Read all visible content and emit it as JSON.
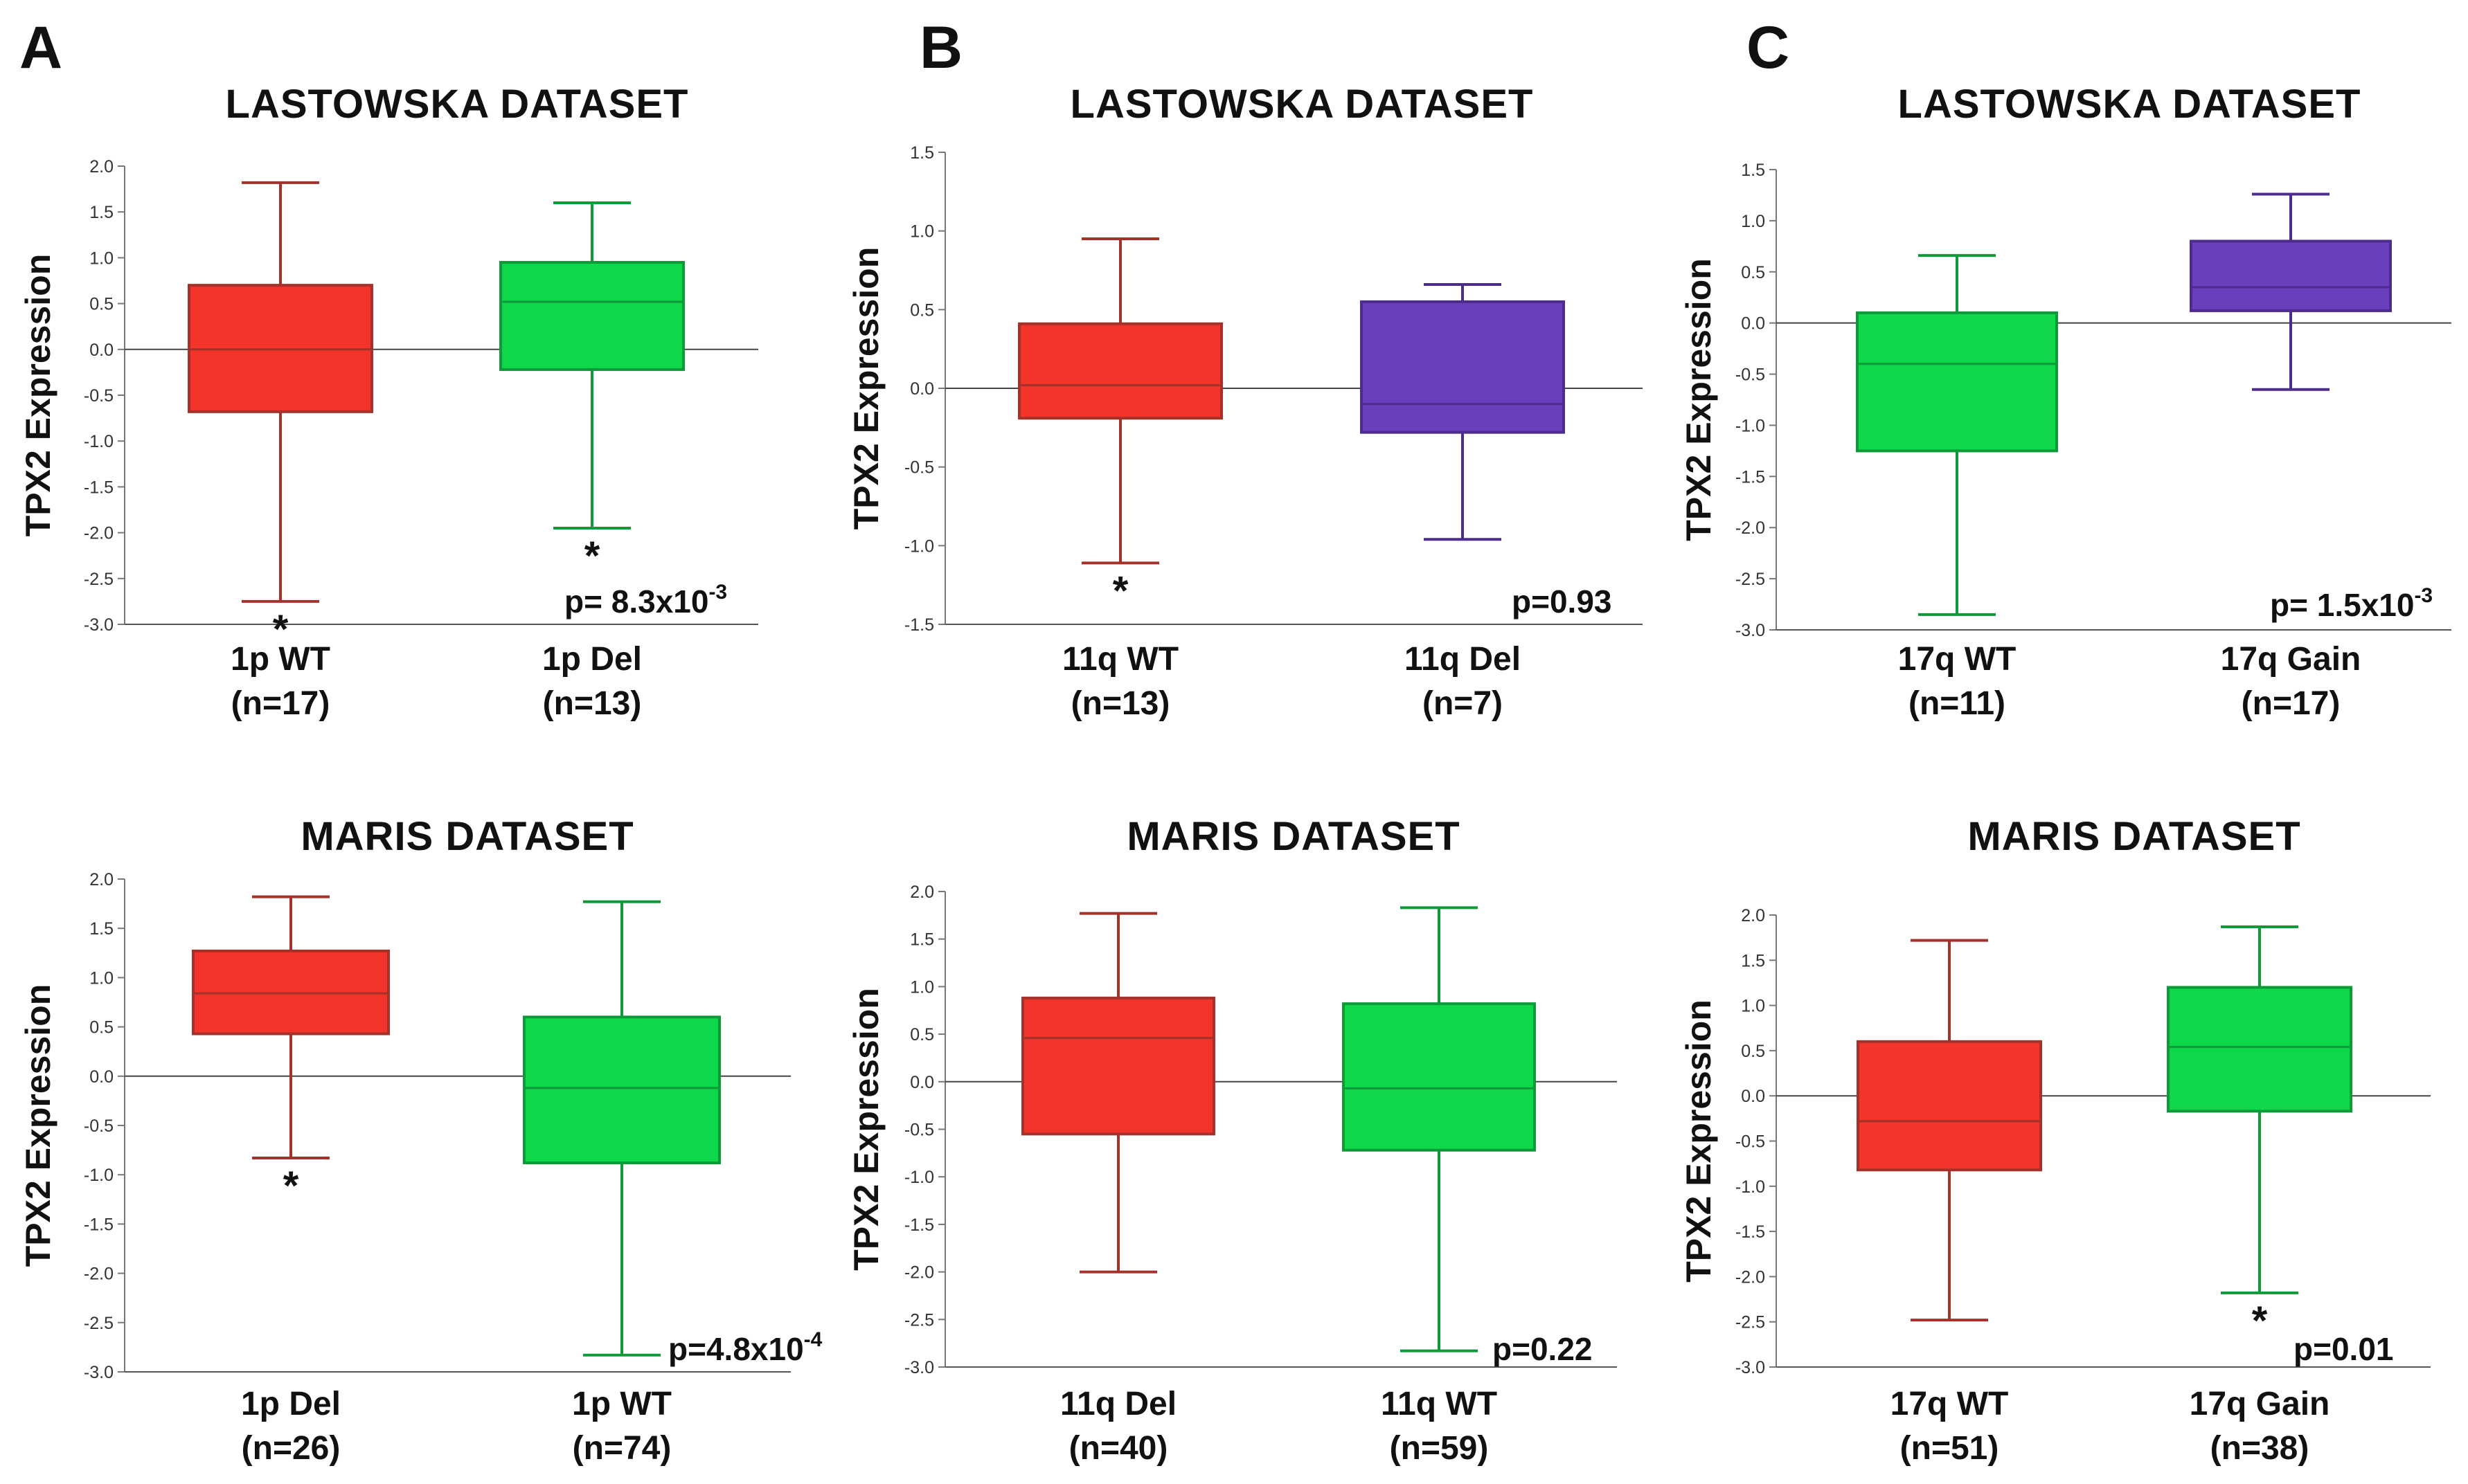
{
  "panel_letters": [
    "A",
    "B",
    "C"
  ],
  "colors": {
    "red": "#f2342a",
    "green": "#0ed84a",
    "purple": "#6a3fbd"
  },
  "chart_data": [
    {
      "id": "A1",
      "type": "box",
      "panel": "A",
      "title": "LASTOWSKA  DATASET",
      "ylabel": "TPX2  Expression",
      "ylim": [
        -3.0,
        2.0
      ],
      "yticks": [
        "2.0",
        "1.5",
        "1.0",
        "0.5",
        "0.0",
        "-0.5",
        "-1.0",
        "-1.5",
        "-2.0",
        "-2.5",
        "-3.0"
      ],
      "reference_line": 0.0,
      "p_base": "p= 8.3x10",
      "p_exp": "-3",
      "groups": [
        {
          "label": "1p WT",
          "n": "(n=17)",
          "color": "red",
          "min": -2.75,
          "q1": -0.68,
          "median": 0.0,
          "q3": 0.7,
          "max": 1.82,
          "star": "*"
        },
        {
          "label": "1p Del",
          "n": "(n=13)",
          "color": "green",
          "min": -1.95,
          "q1": -0.22,
          "median": 0.52,
          "q3": 0.95,
          "max": 1.6,
          "star": "*"
        }
      ]
    },
    {
      "id": "B1",
      "type": "box",
      "panel": "B",
      "title": "LASTOWSKA  DATASET",
      "ylabel": "TPX2  Expression",
      "ylim": [
        -1.5,
        1.5
      ],
      "yticks": [
        "1.5",
        "1.0",
        "0.5",
        "0.0",
        "-0.5",
        "-1.0",
        "-1.5"
      ],
      "reference_line": 0.0,
      "p_base": "p=0.93",
      "p_exp": "",
      "groups": [
        {
          "label": "11q WT",
          "n": "(n=13)",
          "color": "red",
          "min": -1.11,
          "q1": -0.19,
          "median": 0.02,
          "q3": 0.41,
          "max": 0.95,
          "star": "*"
        },
        {
          "label": "11q Del",
          "n": "(n=7)",
          "color": "purple",
          "min": -0.96,
          "q1": -0.28,
          "median": -0.1,
          "q3": 0.55,
          "max": 0.66,
          "star": ""
        }
      ]
    },
    {
      "id": "C1",
      "type": "box",
      "panel": "C",
      "title": "LASTOWSKA  DATASET",
      "ylabel": "TPX2  Expression",
      "ylim": [
        -3.0,
        1.5
      ],
      "yticks": [
        "1.5",
        "1.0",
        "0.5",
        "0.0",
        "-0.5",
        "-1.0",
        "-1.5",
        "-2.0",
        "-2.5",
        "-3.0"
      ],
      "reference_line": 0.0,
      "p_base": "p= 1.5x10",
      "p_exp": "-3",
      "groups": [
        {
          "label": "17q WT",
          "n": "(n=11)",
          "color": "green",
          "min": -2.85,
          "q1": -1.25,
          "median": -0.4,
          "q3": 0.1,
          "max": 0.66,
          "star": ""
        },
        {
          "label": "17q Gain",
          "n": "(n=17)",
          "color": "purple",
          "min": -0.65,
          "q1": 0.12,
          "median": 0.35,
          "q3": 0.8,
          "max": 1.26,
          "star": ""
        }
      ]
    },
    {
      "id": "A2",
      "type": "box",
      "panel": "A",
      "title": "MARIS  DATASET",
      "ylabel": "TPX2  Expression",
      "ylim": [
        -3.0,
        2.0
      ],
      "yticks": [
        "2.0",
        "1.5",
        "1.0",
        "0.5",
        "0.0",
        "-0.5",
        "-1.0",
        "-1.5",
        "-2.0",
        "-2.5",
        "-3.0"
      ],
      "reference_line": 0.0,
      "p_base": "p=4.8x10",
      "p_exp": "-4",
      "groups": [
        {
          "label": "1p Del",
          "n": "(n=26)",
          "color": "red",
          "min": -0.83,
          "q1": 0.43,
          "median": 0.84,
          "q3": 1.27,
          "max": 1.82,
          "star": "*"
        },
        {
          "label": "1p WT",
          "n": "(n=74)",
          "color": "green",
          "min": -2.83,
          "q1": -0.88,
          "median": -0.12,
          "q3": 0.6,
          "max": 1.77,
          "star": ""
        }
      ]
    },
    {
      "id": "B2",
      "type": "box",
      "panel": "B",
      "title": "MARIS  DATASET",
      "ylabel": "TPX2  Expression",
      "ylim": [
        -3.0,
        2.0
      ],
      "yticks": [
        "2.0",
        "1.5",
        "1.0",
        "0.5",
        "0.0",
        "-0.5",
        "-1.0",
        "-1.5",
        "-2.0",
        "-2.5",
        "-3.0"
      ],
      "reference_line": 0.0,
      "p_base": "p=0.22",
      "p_exp": "",
      "groups": [
        {
          "label": "11q Del",
          "n": "(n=40)",
          "color": "red",
          "min": -2.0,
          "q1": -0.55,
          "median": 0.46,
          "q3": 0.88,
          "max": 1.77,
          "star": ""
        },
        {
          "label": "11q WT",
          "n": "(n=59)",
          "color": "green",
          "min": -2.83,
          "q1": -0.72,
          "median": -0.07,
          "q3": 0.82,
          "max": 1.83,
          "star": ""
        }
      ]
    },
    {
      "id": "C2",
      "type": "box",
      "panel": "C",
      "title": "MARIS  DATASET",
      "ylabel": "TPX2  Expression",
      "ylim": [
        -3.0,
        2.0
      ],
      "yticks": [
        "2.0",
        "1.5",
        "1.0",
        "0.5",
        "0.0",
        "-0.5",
        "-1.0",
        "-1.5",
        "-2.0",
        "-2.5",
        "-3.0"
      ],
      "reference_line": 0.0,
      "p_base": "p=0.01",
      "p_exp": "",
      "groups": [
        {
          "label": "17q WT",
          "n": "(n=51)",
          "color": "red",
          "min": -2.48,
          "q1": -0.82,
          "median": -0.28,
          "q3": 0.6,
          "max": 1.72,
          "star": ""
        },
        {
          "label": "17q Gain",
          "n": "(n=38)",
          "color": "green",
          "min": -2.18,
          "q1": -0.17,
          "median": 0.54,
          "q3": 1.2,
          "max": 1.87,
          "star": "*"
        }
      ]
    }
  ]
}
